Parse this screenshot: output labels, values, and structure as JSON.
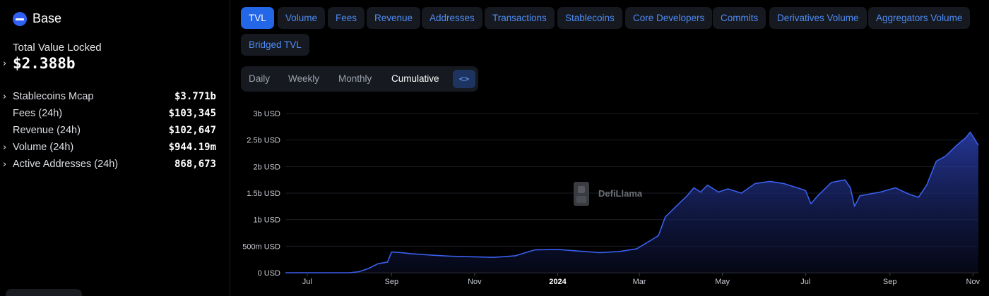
{
  "chain": {
    "name": "Base",
    "logo_icon": "base-logo-icon",
    "logo_color": "#2f5ff3"
  },
  "summary": {
    "tvl_label": "Total Value Locked",
    "tvl_value": "$2.388b",
    "metrics": [
      {
        "label": "Stablecoins Mcap",
        "value": "$3.771b",
        "expandable": true
      },
      {
        "label": "Fees (24h)",
        "value": "$103,345",
        "expandable": false
      },
      {
        "label": "Revenue (24h)",
        "value": "$102,647",
        "expandable": false
      },
      {
        "label": "Volume (24h)",
        "value": "$944.19m",
        "expandable": true
      },
      {
        "label": "Active Addresses (24h)",
        "value": "868,673",
        "expandable": true
      }
    ]
  },
  "tabs": [
    {
      "label": "TVL",
      "active": true
    },
    {
      "label": "Volume",
      "active": false
    },
    {
      "label": "Fees",
      "active": false
    },
    {
      "label": "Revenue",
      "active": false
    },
    {
      "label": "Addresses",
      "active": false
    },
    {
      "label": "Transactions",
      "active": false
    },
    {
      "label": "Stablecoins",
      "active": false
    },
    {
      "label": "Core Developers",
      "active": false
    },
    {
      "label": "Commits",
      "active": false
    },
    {
      "label": "Derivatives Volume",
      "active": false
    },
    {
      "label": "Aggregators Volume",
      "active": false
    },
    {
      "label": "Bridged TVL",
      "active": false
    }
  ],
  "range": {
    "options": [
      {
        "label": "Daily",
        "active": false
      },
      {
        "label": "Weekly",
        "active": false
      },
      {
        "label": "Monthly",
        "active": false
      },
      {
        "label": "Cumulative",
        "active": true
      }
    ],
    "embed_label": "<>",
    "embed_icon": "embed-code-icon"
  },
  "watermark": {
    "text": "DefiLlama",
    "icon": "llama-icon"
  },
  "colors": {
    "accent": "#2366e8",
    "tab_text": "#4f8df7",
    "line": "#3a5ff0",
    "area_top": "#2d43b8"
  },
  "chart_data": {
    "type": "area",
    "title": "",
    "xlabel": "",
    "ylabel": "",
    "y_unit": "USD",
    "ylim": [
      0,
      3000000000
    ],
    "y_ticks": [
      {
        "value": 0,
        "label": "0 USD"
      },
      {
        "value": 500000000,
        "label": "500m USD"
      },
      {
        "value": 1000000000,
        "label": "1b USD"
      },
      {
        "value": 1500000000,
        "label": "1.5b USD"
      },
      {
        "value": 2000000000,
        "label": "2b USD"
      },
      {
        "value": 2500000000,
        "label": "2.5b USD"
      },
      {
        "value": 3000000000,
        "label": "3b USD"
      }
    ],
    "x_ticks": [
      {
        "x": "2023-07-01",
        "label": "Jul",
        "bold": false
      },
      {
        "x": "2023-09-01",
        "label": "Sep",
        "bold": false
      },
      {
        "x": "2023-11-01",
        "label": "Nov",
        "bold": false
      },
      {
        "x": "2024-01-01",
        "label": "2024",
        "bold": true
      },
      {
        "x": "2024-03-01",
        "label": "Mar",
        "bold": false
      },
      {
        "x": "2024-05-01",
        "label": "May",
        "bold": false
      },
      {
        "x": "2024-07-01",
        "label": "Jul",
        "bold": false
      },
      {
        "x": "2024-09-01",
        "label": "Sep",
        "bold": false
      },
      {
        "x": "2024-11-01",
        "label": "Nov",
        "bold": false
      }
    ],
    "xlim": [
      "2023-06-15",
      "2024-11-05"
    ],
    "grid": true,
    "legend": "none",
    "series": [
      {
        "name": "TVL",
        "points": [
          [
            "2023-06-15",
            0
          ],
          [
            "2023-07-15",
            0
          ],
          [
            "2023-08-01",
            0
          ],
          [
            "2023-08-08",
            20000000
          ],
          [
            "2023-08-15",
            80000000
          ],
          [
            "2023-08-22",
            170000000
          ],
          [
            "2023-08-29",
            200000000
          ],
          [
            "2023-09-01",
            390000000
          ],
          [
            "2023-09-08",
            380000000
          ],
          [
            "2023-09-15",
            360000000
          ],
          [
            "2023-10-01",
            330000000
          ],
          [
            "2023-10-15",
            310000000
          ],
          [
            "2023-11-01",
            300000000
          ],
          [
            "2023-11-15",
            290000000
          ],
          [
            "2023-12-01",
            320000000
          ],
          [
            "2023-12-15",
            430000000
          ],
          [
            "2024-01-01",
            440000000
          ],
          [
            "2024-01-15",
            410000000
          ],
          [
            "2024-02-01",
            380000000
          ],
          [
            "2024-02-15",
            400000000
          ],
          [
            "2024-02-28",
            450000000
          ],
          [
            "2024-03-10",
            620000000
          ],
          [
            "2024-03-15",
            700000000
          ],
          [
            "2024-03-20",
            1050000000
          ],
          [
            "2024-03-28",
            1250000000
          ],
          [
            "2024-04-05",
            1450000000
          ],
          [
            "2024-04-10",
            1600000000
          ],
          [
            "2024-04-15",
            1520000000
          ],
          [
            "2024-04-20",
            1650000000
          ],
          [
            "2024-04-28",
            1520000000
          ],
          [
            "2024-05-05",
            1580000000
          ],
          [
            "2024-05-15",
            1500000000
          ],
          [
            "2024-05-25",
            1680000000
          ],
          [
            "2024-06-05",
            1720000000
          ],
          [
            "2024-06-15",
            1680000000
          ],
          [
            "2024-06-25",
            1600000000
          ],
          [
            "2024-07-01",
            1550000000
          ],
          [
            "2024-07-05",
            1300000000
          ],
          [
            "2024-07-10",
            1450000000
          ],
          [
            "2024-07-20",
            1700000000
          ],
          [
            "2024-07-30",
            1750000000
          ],
          [
            "2024-08-03",
            1600000000
          ],
          [
            "2024-08-06",
            1250000000
          ],
          [
            "2024-08-10",
            1450000000
          ],
          [
            "2024-08-25",
            1520000000
          ],
          [
            "2024-09-05",
            1600000000
          ],
          [
            "2024-09-15",
            1480000000
          ],
          [
            "2024-09-22",
            1420000000
          ],
          [
            "2024-09-28",
            1650000000
          ],
          [
            "2024-10-05",
            2100000000
          ],
          [
            "2024-10-12",
            2200000000
          ],
          [
            "2024-10-20",
            2400000000
          ],
          [
            "2024-10-27",
            2550000000
          ],
          [
            "2024-10-30",
            2650000000
          ],
          [
            "2024-11-05",
            2400000000
          ]
        ]
      }
    ]
  }
}
